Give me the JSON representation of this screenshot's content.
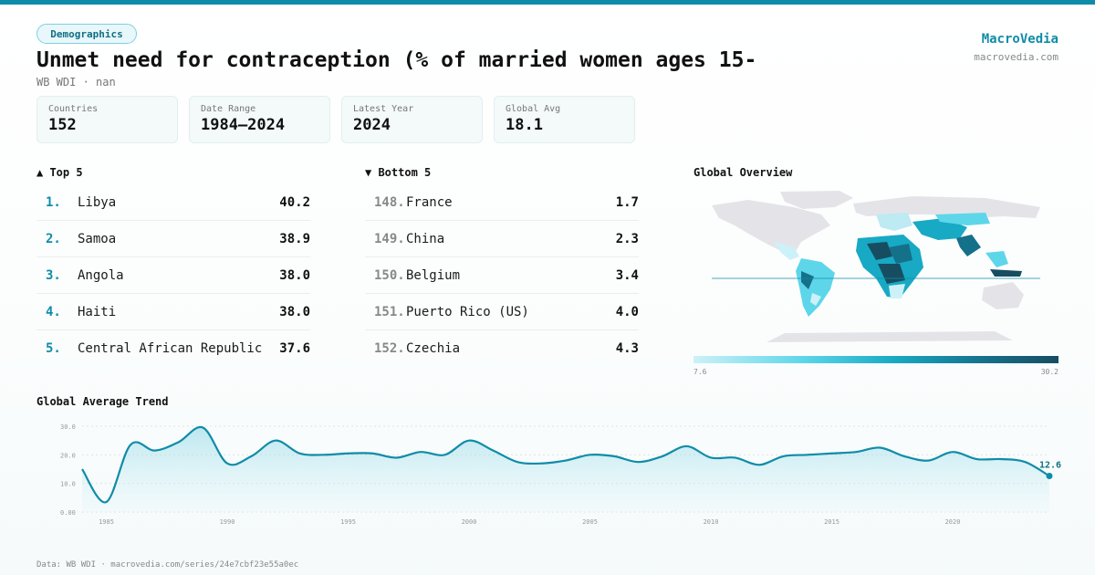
{
  "header": {
    "badge": "Demographics",
    "title": "Unmet need for contraception (% of married women ages 15-",
    "subtitle": "WB WDI · nan",
    "brand": "MacroVedia",
    "brand_url": "macrovedia.com"
  },
  "stats": [
    {
      "label": "Countries",
      "value": "152"
    },
    {
      "label": "Date Range",
      "value": "1984–2024"
    },
    {
      "label": "Latest Year",
      "value": "2024"
    },
    {
      "label": "Global Avg",
      "value": "18.1"
    }
  ],
  "top5": {
    "heading": "▲ Top 5",
    "items": [
      {
        "rank": "1.",
        "name": "Libya",
        "value": "40.2"
      },
      {
        "rank": "2.",
        "name": "Samoa",
        "value": "38.9"
      },
      {
        "rank": "3.",
        "name": "Angola",
        "value": "38.0"
      },
      {
        "rank": "4.",
        "name": "Haiti",
        "value": "38.0"
      },
      {
        "rank": "5.",
        "name": "Central African Republic",
        "value": "37.6"
      }
    ]
  },
  "bottom5": {
    "heading": "▼ Bottom 5",
    "items": [
      {
        "rank": "148.",
        "name": "France",
        "value": "1.7"
      },
      {
        "rank": "149.",
        "name": "China",
        "value": "2.3"
      },
      {
        "rank": "150.",
        "name": "Belgium",
        "value": "3.4"
      },
      {
        "rank": "151.",
        "name": "Puerto Rico (US)",
        "value": "4.0"
      },
      {
        "rank": "152.",
        "name": "Czechia",
        "value": "4.3"
      }
    ]
  },
  "map": {
    "heading": "Global Overview",
    "legend_min": "7.6",
    "legend_max": "30.2",
    "colors": {
      "land": "#e4e4e8",
      "low": "#cdf1f8",
      "mid": "#18a9c4",
      "high": "#174d60"
    }
  },
  "trend": {
    "heading": "Global Average Trend",
    "end_label": "12.6",
    "accent": "#0f8ca8"
  },
  "footer": "Data: WB WDI · macrovedia.com/series/24e7cbf23e55a0ec",
  "chart_data": {
    "type": "area",
    "title": "Global Average Trend",
    "x": [
      1984,
      1985,
      1986,
      1987,
      1988,
      1989,
      1990,
      1991,
      1992,
      1993,
      1994,
      1995,
      1996,
      1997,
      1998,
      1999,
      2000,
      2001,
      2002,
      2003,
      2004,
      2005,
      2006,
      2007,
      2008,
      2009,
      2010,
      2011,
      2012,
      2013,
      2014,
      2015,
      2016,
      2017,
      2018,
      2019,
      2020,
      2021,
      2022,
      2023,
      2024
    ],
    "series": [
      {
        "values": [
          15,
          3.5,
          23.5,
          21.5,
          24.5,
          29.5,
          17,
          19.5,
          25,
          20.5,
          20,
          20.5,
          20.5,
          19,
          21,
          20,
          25,
          21.5,
          17.5,
          17,
          18,
          20,
          19.5,
          17.5,
          19.5,
          23,
          19,
          19,
          16.5,
          19.5,
          20,
          20.5,
          21,
          22.5,
          19.5,
          18,
          21,
          18.5,
          18.5,
          17.5,
          12.6
        ]
      }
    ],
    "xticks": [
      "1985",
      "1990",
      "1995",
      "2000",
      "2005",
      "2010",
      "2015",
      "2020"
    ],
    "yticks": [
      "0.00",
      "10.0",
      "20.0",
      "30.0"
    ],
    "ylim": [
      0,
      30
    ],
    "grid": true
  }
}
